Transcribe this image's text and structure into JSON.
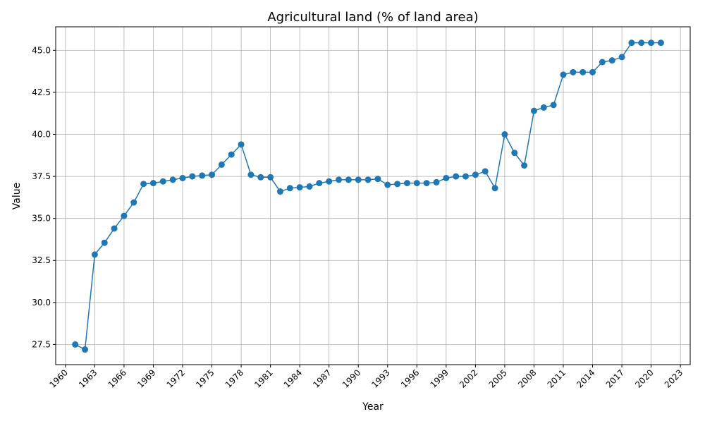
{
  "chart_data": {
    "type": "line",
    "title": "Agricultural land (% of land area)",
    "xlabel": "Year",
    "ylabel": "Value",
    "xlim": [
      1959.0,
      2024.0
    ],
    "ylim": [
      26.3,
      46.4
    ],
    "x_ticks": [
      1960,
      1963,
      1966,
      1969,
      1972,
      1975,
      1978,
      1981,
      1984,
      1987,
      1990,
      1993,
      1996,
      1999,
      2002,
      2005,
      2008,
      2011,
      2014,
      2017,
      2020,
      2023
    ],
    "y_ticks": [
      27.5,
      30.0,
      32.5,
      35.0,
      37.5,
      40.0,
      42.5,
      45.0
    ],
    "y_tick_labels": [
      "27.5",
      "30.0",
      "32.5",
      "35.0",
      "37.5",
      "40.0",
      "42.5",
      "45.0"
    ],
    "grid": true,
    "marker": "circle",
    "color": "#1f77b4",
    "series": [
      {
        "x": [
          1961,
          1962,
          1963,
          1964,
          1965,
          1966,
          1967,
          1968,
          1969,
          1970,
          1971,
          1972,
          1973,
          1974,
          1975,
          1976,
          1977,
          1978,
          1979,
          1980,
          1981,
          1982,
          1983,
          1984,
          1985,
          1986,
          1987,
          1988,
          1989,
          1990,
          1991,
          1992,
          1993,
          1994,
          1995,
          1996,
          1997,
          1998,
          1999,
          2000,
          2001,
          2002,
          2003,
          2004,
          2005,
          2006,
          2007,
          2008,
          2009,
          2010,
          2011,
          2012,
          2013,
          2014,
          2015,
          2016,
          2017,
          2018,
          2019,
          2020,
          2021
        ],
        "values": [
          27.5,
          27.2,
          32.85,
          33.55,
          34.4,
          35.15,
          35.95,
          37.05,
          37.1,
          37.2,
          37.3,
          37.4,
          37.5,
          37.55,
          37.6,
          38.2,
          38.8,
          39.4,
          37.6,
          37.45,
          37.45,
          36.6,
          36.8,
          36.85,
          36.9,
          37.1,
          37.2,
          37.3,
          37.3,
          37.3,
          37.3,
          37.35,
          37.0,
          37.05,
          37.1,
          37.1,
          37.1,
          37.15,
          37.4,
          37.5,
          37.5,
          37.6,
          37.8,
          36.8,
          40.0,
          38.9,
          38.15,
          41.4,
          41.6,
          41.75,
          43.55,
          43.7,
          43.7,
          43.7,
          44.3,
          44.4,
          44.6,
          45.45,
          45.45,
          45.45,
          45.45
        ]
      }
    ]
  }
}
